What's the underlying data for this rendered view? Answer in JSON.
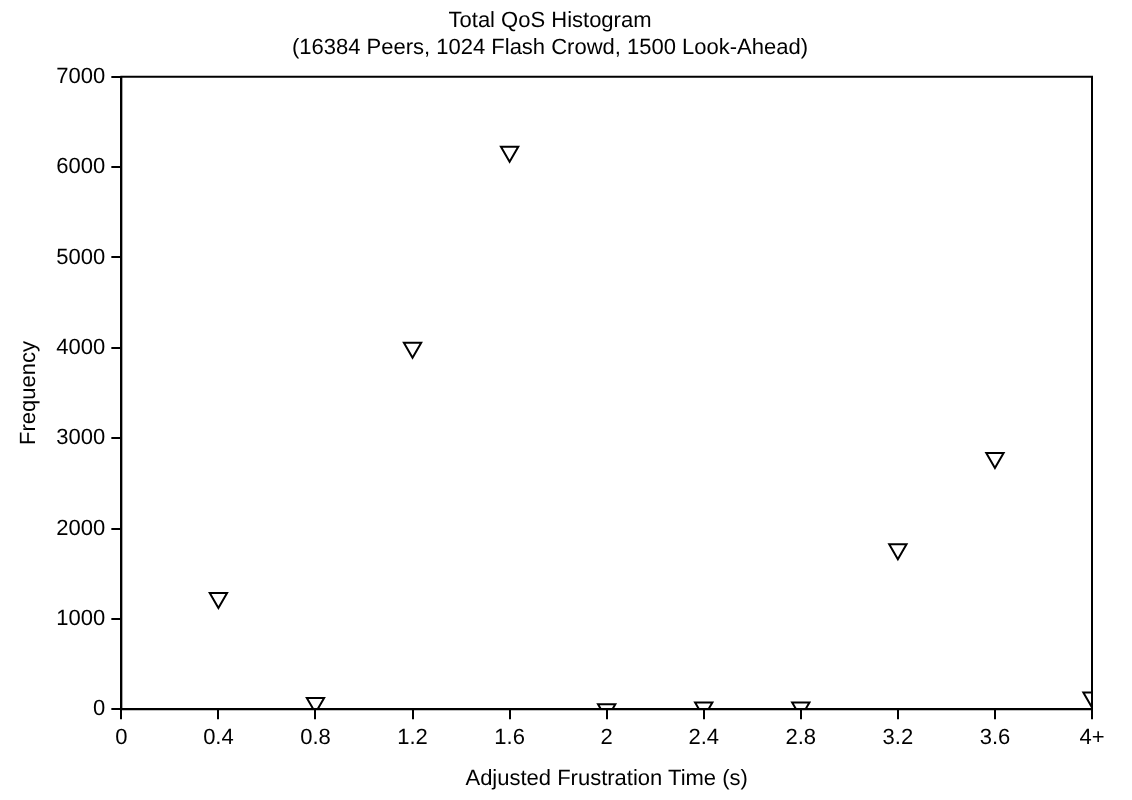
{
  "chart_data": {
    "type": "scatter",
    "title": "Total QoS Histogram",
    "subtitle": "(16384 Peers, 1024 Flash Crowd, 1500 Look-Ahead)",
    "xlabel": "Adjusted Frustration Time (s)",
    "ylabel": "Frequency",
    "x": [
      0.4,
      0.8,
      1.2,
      1.6,
      2,
      2.4,
      2.8,
      3.2,
      3.6,
      4
    ],
    "series": [
      {
        "color": "#000000",
        "values": [
          1230,
          70,
          4000,
          6170,
          0,
          20,
          20,
          1770,
          2780,
          130
        ]
      }
    ],
    "xlim": [
      0,
      4
    ],
    "xticks": [
      0,
      0.4,
      0.8,
      1.2,
      1.6,
      2,
      2.4,
      2.8,
      3.2,
      3.6,
      {
        "value": 4,
        "label": "4+"
      }
    ],
    "ylim": [
      0,
      7000
    ],
    "yticks": [
      0,
      1000,
      2000,
      3000,
      4000,
      5000,
      6000,
      7000
    ],
    "marker": "triangle",
    "grid": false,
    "legend": false
  }
}
